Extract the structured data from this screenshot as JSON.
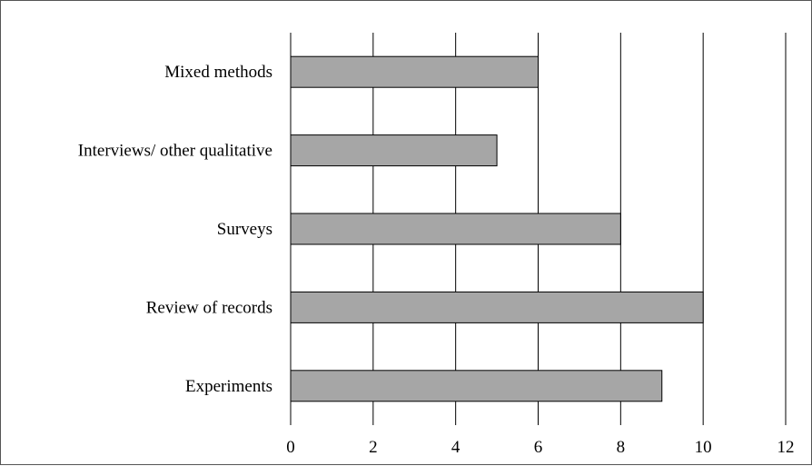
{
  "chart_data": {
    "type": "bar",
    "orientation": "horizontal",
    "categories": [
      "Mixed methods",
      "Interviews/ other qualitative",
      "Surveys",
      "Review of records",
      "Experiments"
    ],
    "values": [
      6,
      5,
      8,
      10,
      9
    ],
    "xlim": [
      0,
      12
    ],
    "x_ticks": [
      "0",
      "2",
      "4",
      "6",
      "8",
      "10",
      "12"
    ],
    "grid": "vertical",
    "legend": "none",
    "title": "",
    "xlabel": "",
    "ylabel": "",
    "colors": {
      "bar_fill": "#a6a6a6",
      "bar_stroke": "#000000",
      "grid": "#000000"
    }
  }
}
